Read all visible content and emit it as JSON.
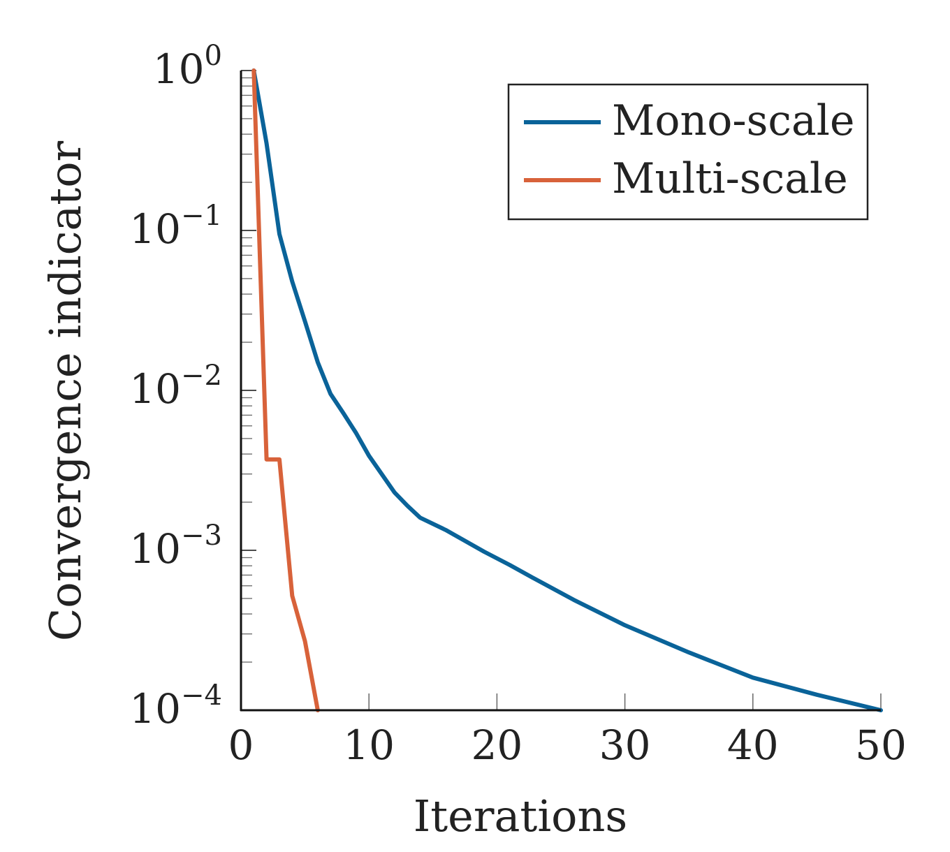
{
  "chart_data": {
    "type": "line",
    "xlabel": "Iterations",
    "ylabel": "Convergence indicator",
    "xlim": [
      0,
      50
    ],
    "ylim": [
      0.0001,
      1
    ],
    "yscale": "log",
    "grid": false,
    "legend_position": "top-right",
    "x_ticks": [
      "0",
      "10",
      "20",
      "30",
      "40",
      "50"
    ],
    "y_ticks": [
      {
        "value": 1,
        "base": "10",
        "exp": "0"
      },
      {
        "value": 0.1,
        "base": "10",
        "exp": "−1"
      },
      {
        "value": 0.01,
        "base": "10",
        "exp": "−2"
      },
      {
        "value": 0.001,
        "base": "10",
        "exp": "−3"
      },
      {
        "value": 0.0001,
        "base": "10",
        "exp": "−4"
      }
    ],
    "series": [
      {
        "name": "Mono-scale",
        "color": "#0a6399",
        "x": [
          1,
          2,
          3,
          4,
          5,
          6,
          7,
          8,
          9,
          10,
          12,
          13,
          14,
          16,
          19,
          21,
          23,
          26,
          30,
          35,
          40,
          45,
          50
        ],
        "y": [
          1.0,
          0.35,
          0.095,
          0.048,
          0.027,
          0.015,
          0.0095,
          0.0072,
          0.0054,
          0.0039,
          0.0023,
          0.0019,
          0.0016,
          0.00134,
          0.00098,
          0.00081,
          0.00066,
          0.00049,
          0.00034,
          0.00023,
          0.00016,
          0.000125,
          0.0001
        ]
      },
      {
        "name": "Multi-scale",
        "color": "#d8623a",
        "x": [
          1,
          2,
          3,
          4,
          5,
          6
        ],
        "y": [
          1.0,
          0.0037,
          0.0037,
          0.00052,
          0.00027,
          0.0001
        ]
      }
    ]
  }
}
